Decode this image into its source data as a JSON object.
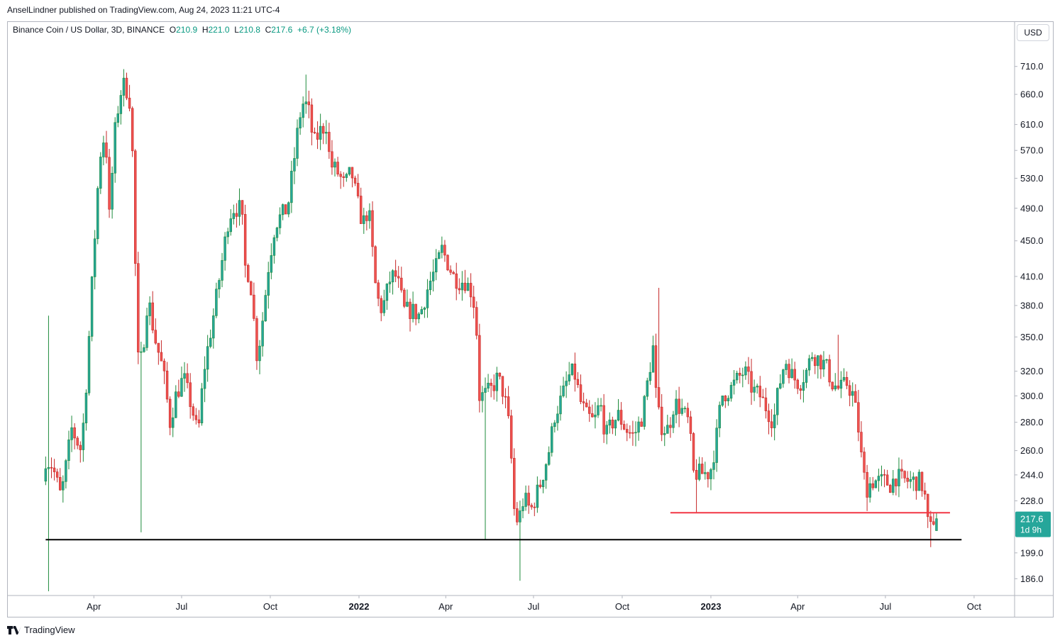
{
  "header": {
    "published": "AnselLindner published on TradingView.com, Aug 24, 2023 11:21 UTC-4",
    "symbol": "Binance Coin / US Dollar, 3D, BINANCE",
    "open_label": "O",
    "open": "210.9",
    "high_label": "H",
    "high": "221.0",
    "low_label": "L",
    "low": "210.8",
    "close_label": "C",
    "close": "217.6",
    "change": "+6.7 (+3.18%)",
    "currency_button": "USD"
  },
  "footer": {
    "brand": "TradingView",
    "logo_icon": "tradingview-logo-icon"
  },
  "price_tag": {
    "price": "217.6",
    "countdown": "1d 9h",
    "color": "#26a69a"
  },
  "colors": {
    "up": "#26a69a",
    "down": "#ef5350",
    "up_dark": "#1e8b3c",
    "down_dark": "#c62828",
    "line_red": "#f23645",
    "line_black": "#000000"
  },
  "chart_data": {
    "type": "candlestick",
    "title": "Binance Coin / US Dollar, 3D, BINANCE",
    "yscale": "log",
    "ylim": [
      180,
      740
    ],
    "y_ticks": [
      710.0,
      660.0,
      610.0,
      570.0,
      530.0,
      490.0,
      450.0,
      410.0,
      380.0,
      350.0,
      320.0,
      300.0,
      280.0,
      260.0,
      244.0,
      228.0,
      199.0,
      186.0
    ],
    "y_tick_labels": [
      "710.0",
      "660.0",
      "610.0",
      "570.0",
      "530.0",
      "490.0",
      "450.0",
      "410.0",
      "380.0",
      "350.0",
      "320.0",
      "300.0",
      "280.0",
      "260.0",
      "244.0",
      "228.0",
      "199.0",
      "186.0"
    ],
    "x_ticks": [
      {
        "label": "Apr",
        "date": "2021-04-01",
        "year": false
      },
      {
        "label": "Jul",
        "date": "2021-07-01",
        "year": false
      },
      {
        "label": "Oct",
        "date": "2021-10-01",
        "year": false
      },
      {
        "label": "2022",
        "date": "2022-01-01",
        "year": true
      },
      {
        "label": "Apr",
        "date": "2022-04-01",
        "year": false
      },
      {
        "label": "Jul",
        "date": "2022-07-01",
        "year": false
      },
      {
        "label": "Oct",
        "date": "2022-10-01",
        "year": false
      },
      {
        "label": "2023",
        "date": "2023-01-01",
        "year": true
      },
      {
        "label": "Apr",
        "date": "2023-04-01",
        "year": false
      },
      {
        "label": "Jul",
        "date": "2023-07-01",
        "year": false
      },
      {
        "label": "Oct",
        "date": "2023-10-01",
        "year": false
      }
    ],
    "xlim": [
      "2021-01-01",
      "2023-11-12"
    ],
    "horizontal_lines": [
      {
        "price": 221,
        "from": "2022-11-20",
        "to": "2023-09-06",
        "color": "#f23645"
      },
      {
        "price": 206,
        "from": "2021-02-10",
        "to": "2023-09-18",
        "color": "#000000"
      }
    ],
    "candle_interval_days": 3,
    "anchors": [
      [
        "2021-02-10",
        180
      ],
      [
        "2021-02-12",
        255
      ],
      [
        "2021-02-20",
        250
      ],
      [
        "2021-03-01",
        230
      ],
      [
        "2021-03-12",
        275
      ],
      [
        "2021-03-22",
        260
      ],
      [
        "2021-03-28",
        320
      ],
      [
        "2021-04-03",
        420
      ],
      [
        "2021-04-10",
        560
      ],
      [
        "2021-04-16",
        600
      ],
      [
        "2021-04-20",
        480
      ],
      [
        "2021-04-26",
        600
      ],
      [
        "2021-05-01",
        660
      ],
      [
        "2021-05-06",
        680
      ],
      [
        "2021-05-11",
        650
      ],
      [
        "2021-05-15",
        540
      ],
      [
        "2021-05-19",
        330
      ],
      [
        "2021-05-24",
        330
      ],
      [
        "2021-05-30",
        390
      ],
      [
        "2021-06-06",
        350
      ],
      [
        "2021-06-15",
        320
      ],
      [
        "2021-06-22",
        280
      ],
      [
        "2021-06-28",
        300
      ],
      [
        "2021-07-06",
        315
      ],
      [
        "2021-07-15",
        290
      ],
      [
        "2021-07-21",
        270
      ],
      [
        "2021-07-27",
        320
      ],
      [
        "2021-08-06",
        370
      ],
      [
        "2021-08-14",
        420
      ],
      [
        "2021-08-22",
        480
      ],
      [
        "2021-08-27",
        490
      ],
      [
        "2021-09-04",
        490
      ],
      [
        "2021-09-08",
        420
      ],
      [
        "2021-09-13",
        410
      ],
      [
        "2021-09-20",
        335
      ],
      [
        "2021-09-24",
        350
      ],
      [
        "2021-10-02",
        420
      ],
      [
        "2021-10-09",
        470
      ],
      [
        "2021-10-15",
        480
      ],
      [
        "2021-10-22",
        490
      ],
      [
        "2021-10-29",
        560
      ],
      [
        "2021-11-03",
        620
      ],
      [
        "2021-11-08",
        650
      ],
      [
        "2021-11-13",
        630
      ],
      [
        "2021-11-18",
        580
      ],
      [
        "2021-11-25",
        600
      ],
      [
        "2021-12-01",
        610
      ],
      [
        "2021-12-05",
        550
      ],
      [
        "2021-12-12",
        540
      ],
      [
        "2021-12-20",
        520
      ],
      [
        "2021-12-27",
        540
      ],
      [
        "2022-01-02",
        500
      ],
      [
        "2022-01-08",
        470
      ],
      [
        "2022-01-14",
        490
      ],
      [
        "2022-01-22",
        390
      ],
      [
        "2022-01-28",
        375
      ],
      [
        "2022-02-06",
        410
      ],
      [
        "2022-02-12",
        410
      ],
      [
        "2022-02-20",
        375
      ],
      [
        "2022-02-28",
        375
      ],
      [
        "2022-03-08",
        370
      ],
      [
        "2022-03-17",
        400
      ],
      [
        "2022-03-25",
        420
      ],
      [
        "2022-03-31",
        440
      ],
      [
        "2022-04-06",
        425
      ],
      [
        "2022-04-12",
        410
      ],
      [
        "2022-04-18",
        405
      ],
      [
        "2022-04-24",
        405
      ],
      [
        "2022-04-30",
        395
      ],
      [
        "2022-05-05",
        375
      ],
      [
        "2022-05-09",
        300
      ],
      [
        "2022-05-13",
        300
      ],
      [
        "2022-05-21",
        305
      ],
      [
        "2022-05-28",
        315
      ],
      [
        "2022-06-04",
        300
      ],
      [
        "2022-06-10",
        270
      ],
      [
        "2022-06-13",
        225
      ],
      [
        "2022-06-18",
        215
      ],
      [
        "2022-06-24",
        230
      ],
      [
        "2022-07-01",
        222
      ],
      [
        "2022-07-06",
        230
      ],
      [
        "2022-07-12",
        240
      ],
      [
        "2022-07-20",
        260
      ],
      [
        "2022-07-26",
        285
      ],
      [
        "2022-08-03",
        300
      ],
      [
        "2022-08-09",
        315
      ],
      [
        "2022-08-15",
        320
      ],
      [
        "2022-08-22",
        295
      ],
      [
        "2022-08-28",
        285
      ],
      [
        "2022-09-05",
        280
      ],
      [
        "2022-09-11",
        295
      ],
      [
        "2022-09-17",
        270
      ],
      [
        "2022-09-24",
        280
      ],
      [
        "2022-09-30",
        285
      ],
      [
        "2022-10-08",
        275
      ],
      [
        "2022-10-16",
        270
      ],
      [
        "2022-10-25",
        285
      ],
      [
        "2022-11-01",
        320
      ],
      [
        "2022-11-05",
        340
      ],
      [
        "2022-11-09",
        290
      ],
      [
        "2022-11-15",
        275
      ],
      [
        "2022-11-21",
        275
      ],
      [
        "2022-11-27",
        295
      ],
      [
        "2022-12-04",
        290
      ],
      [
        "2022-12-12",
        280
      ],
      [
        "2022-12-17",
        245
      ],
      [
        "2022-12-25",
        245
      ],
      [
        "2023-01-03",
        245
      ],
      [
        "2023-01-09",
        265
      ],
      [
        "2023-01-15",
        300
      ],
      [
        "2023-01-24",
        305
      ],
      [
        "2023-02-02",
        315
      ],
      [
        "2023-02-08",
        320
      ],
      [
        "2023-02-16",
        305
      ],
      [
        "2023-02-24",
        300
      ],
      [
        "2023-03-03",
        290
      ],
      [
        "2023-03-10",
        280
      ],
      [
        "2023-03-15",
        305
      ],
      [
        "2023-03-22",
        330
      ],
      [
        "2023-03-30",
        315
      ],
      [
        "2023-04-06",
        310
      ],
      [
        "2023-04-13",
        320
      ],
      [
        "2023-04-19",
        335
      ],
      [
        "2023-04-26",
        330
      ],
      [
        "2023-05-03",
        325
      ],
      [
        "2023-05-10",
        310
      ],
      [
        "2023-05-17",
        305
      ],
      [
        "2023-05-25",
        310
      ],
      [
        "2023-06-01",
        300
      ],
      [
        "2023-06-06",
        275
      ],
      [
        "2023-06-10",
        250
      ],
      [
        "2023-06-14",
        235
      ],
      [
        "2023-06-20",
        240
      ],
      [
        "2023-06-26",
        240
      ],
      [
        "2023-07-03",
        240
      ],
      [
        "2023-07-09",
        238
      ],
      [
        "2023-07-15",
        243
      ],
      [
        "2023-07-21",
        241
      ],
      [
        "2023-07-28",
        240
      ],
      [
        "2023-08-04",
        240
      ],
      [
        "2023-08-10",
        240
      ],
      [
        "2023-08-14",
        230
      ],
      [
        "2023-08-17",
        215
      ],
      [
        "2023-08-20",
        212
      ],
      [
        "2023-08-23",
        217.6
      ]
    ]
  }
}
